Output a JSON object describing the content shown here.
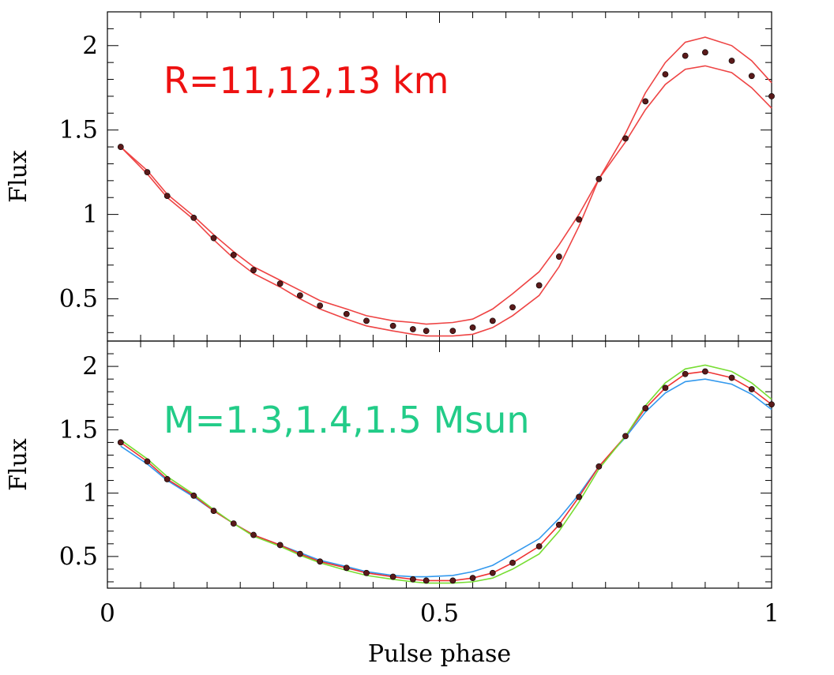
{
  "chart_data": [
    {
      "type": "line",
      "ylabel": "Flux",
      "xlim": [
        0,
        1
      ],
      "ylim": [
        0.25,
        2.2
      ],
      "x_ticks": [
        "0",
        "0.5",
        "1"
      ],
      "y_ticks": [
        "0.5",
        "1",
        "1.5",
        "2"
      ],
      "annotation": "R=11,12,13 km",
      "annotation_color": "#ee1111",
      "markers": {
        "color": "#5a1a1a",
        "x": [
          0.02,
          0.06,
          0.09,
          0.13,
          0.16,
          0.19,
          0.22,
          0.26,
          0.29,
          0.32,
          0.36,
          0.39,
          0.43,
          0.46,
          0.48,
          0.52,
          0.55,
          0.58,
          0.61,
          0.65,
          0.68,
          0.71,
          0.74,
          0.78,
          0.81,
          0.84,
          0.87,
          0.9,
          0.94,
          0.97,
          1.0
        ],
        "y": [
          1.4,
          1.25,
          1.11,
          0.98,
          0.86,
          0.76,
          0.67,
          0.59,
          0.52,
          0.46,
          0.41,
          0.37,
          0.34,
          0.32,
          0.31,
          0.31,
          0.33,
          0.37,
          0.45,
          0.58,
          0.75,
          0.97,
          1.21,
          1.45,
          1.67,
          1.83,
          1.94,
          1.96,
          1.91,
          1.82,
          1.7
        ]
      },
      "series": [
        {
          "color": "#ee4444",
          "values": [
            1.4,
            1.26,
            1.12,
            0.99,
            0.88,
            0.78,
            0.69,
            0.61,
            0.55,
            0.49,
            0.44,
            0.4,
            0.37,
            0.36,
            0.35,
            0.36,
            0.38,
            0.44,
            0.53,
            0.66,
            0.82,
            1.0,
            1.21,
            1.43,
            1.62,
            1.77,
            1.86,
            1.88,
            1.84,
            1.75,
            1.63
          ]
        },
        {
          "color": "#ee4444",
          "values": [
            1.4,
            1.24,
            1.1,
            0.97,
            0.85,
            0.74,
            0.65,
            0.57,
            0.5,
            0.44,
            0.38,
            0.34,
            0.31,
            0.29,
            0.28,
            0.28,
            0.29,
            0.33,
            0.4,
            0.52,
            0.69,
            0.93,
            1.21,
            1.48,
            1.72,
            1.9,
            2.02,
            2.05,
            2.0,
            1.91,
            1.78
          ]
        }
      ]
    },
    {
      "type": "line",
      "xlabel": "Pulse phase",
      "ylabel": "Flux",
      "xlim": [
        0,
        1
      ],
      "ylim": [
        0.25,
        2.2
      ],
      "x_ticks": [
        "0",
        "0.5",
        "1"
      ],
      "y_ticks": [
        "0.5",
        "1",
        "1.5",
        "2"
      ],
      "annotation": "M=1.3,1.4,1.5 Msun",
      "annotation_color": "#22cc88",
      "markers": {
        "color": "#5a1a1a",
        "x": [
          0.02,
          0.06,
          0.09,
          0.13,
          0.16,
          0.19,
          0.22,
          0.26,
          0.29,
          0.32,
          0.36,
          0.39,
          0.43,
          0.46,
          0.48,
          0.52,
          0.55,
          0.58,
          0.61,
          0.65,
          0.68,
          0.71,
          0.74,
          0.78,
          0.81,
          0.84,
          0.87,
          0.9,
          0.94,
          0.97,
          1.0
        ],
        "y": [
          1.4,
          1.25,
          1.11,
          0.98,
          0.86,
          0.76,
          0.67,
          0.59,
          0.52,
          0.46,
          0.41,
          0.37,
          0.34,
          0.32,
          0.31,
          0.31,
          0.33,
          0.37,
          0.45,
          0.58,
          0.75,
          0.97,
          1.21,
          1.45,
          1.67,
          1.83,
          1.94,
          1.96,
          1.91,
          1.82,
          1.7
        ]
      },
      "series": [
        {
          "color": "#3399ee",
          "values": [
            1.37,
            1.23,
            1.1,
            0.97,
            0.86,
            0.76,
            0.67,
            0.59,
            0.53,
            0.47,
            0.42,
            0.38,
            0.35,
            0.34,
            0.34,
            0.35,
            0.38,
            0.43,
            0.52,
            0.64,
            0.8,
            0.99,
            1.21,
            1.44,
            1.64,
            1.79,
            1.88,
            1.9,
            1.86,
            1.78,
            1.66
          ]
        },
        {
          "color": "#ee3333",
          "values": [
            1.4,
            1.25,
            1.11,
            0.98,
            0.86,
            0.76,
            0.67,
            0.59,
            0.52,
            0.46,
            0.41,
            0.37,
            0.34,
            0.32,
            0.31,
            0.31,
            0.33,
            0.37,
            0.45,
            0.58,
            0.75,
            0.97,
            1.21,
            1.45,
            1.67,
            1.83,
            1.94,
            1.96,
            1.91,
            1.82,
            1.7
          ]
        },
        {
          "color": "#77dd33",
          "values": [
            1.42,
            1.27,
            1.13,
            0.99,
            0.87,
            0.76,
            0.66,
            0.58,
            0.51,
            0.45,
            0.39,
            0.35,
            0.32,
            0.3,
            0.29,
            0.29,
            0.3,
            0.33,
            0.4,
            0.52,
            0.7,
            0.93,
            1.19,
            1.45,
            1.69,
            1.87,
            1.98,
            2.01,
            1.96,
            1.87,
            1.74
          ]
        }
      ]
    }
  ]
}
